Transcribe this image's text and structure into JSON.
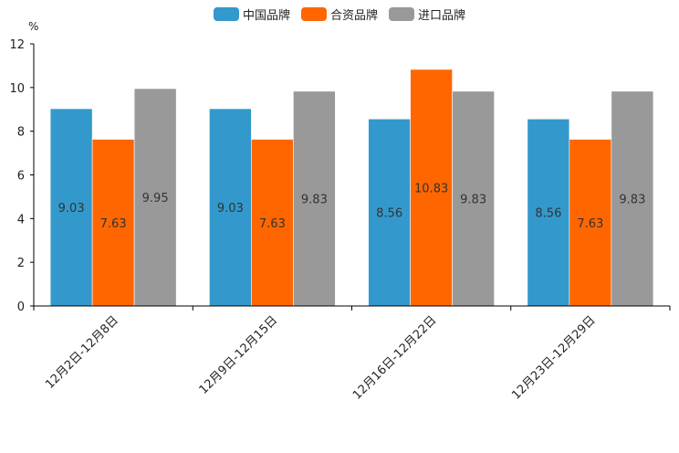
{
  "chart_data": {
    "type": "bar",
    "unit": "%",
    "ylim": [
      0,
      12
    ],
    "yticks": [
      0,
      2,
      4,
      6,
      8,
      10,
      12
    ],
    "categories": [
      "12月2日-12月8日",
      "12月9日-12月15日",
      "12月16日-12月22日",
      "12月23日-12月29日"
    ],
    "series": [
      {
        "name": "中国品牌",
        "color": "#3399cc",
        "values": [
          9.03,
          9.03,
          8.56,
          8.56
        ]
      },
      {
        "name": "合资品牌",
        "color": "#ff6600",
        "values": [
          7.63,
          7.63,
          10.83,
          7.63
        ]
      },
      {
        "name": "进口品牌",
        "color": "#999999",
        "values": [
          9.95,
          9.83,
          9.83,
          9.83
        ]
      }
    ],
    "legend_position": "top-center",
    "grid": false
  }
}
